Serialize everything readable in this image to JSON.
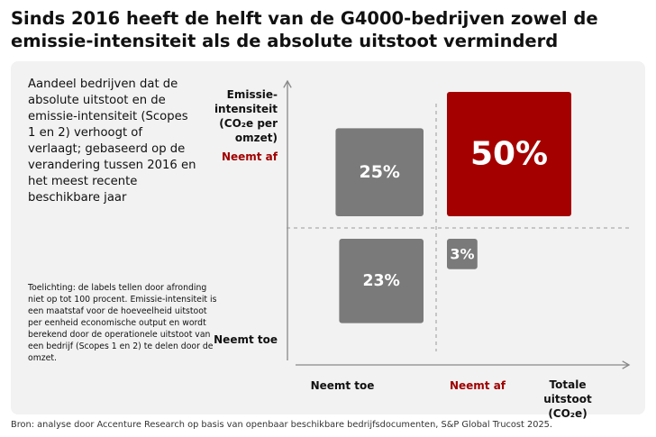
{
  "chart_data": {
    "type": "matrix",
    "title": "Sinds 2016 heeft de helft van de G4000-bedrijven zowel de emissie-intensiteit als de absolute uitstoot verminderd",
    "description": "Aandeel bedrijven dat de absolute uitstoot en de emissie-intensiteit (Scopes 1 en 2) verhoogt of verlaagt; gebaseerd op de verandering tussen 2016 en het meest recente beschikbare jaar",
    "note": "Toelichting: de labels tellen door afronding niet op tot 100 procent. Emissie-intensiteit is een maatstaf voor de hoeveelheid uitstoot per eenheid economische output en wordt berekend door de operationele uitstoot van een bedrijf (Scopes 1 en 2) te delen door de omzet.",
    "source": "Bron: analyse door Accenture Research op basis van openbaar beschikbare bedrijfsdocumenten, S&P Global Trucost 2025.",
    "y_label": "Emissie-intensiteit (CO₂e per omzet)",
    "x_label": "Totale uitstoot (CO₂e)",
    "y_categories": [
      "Neemt af",
      "Neemt toe"
    ],
    "x_categories": [
      "Neemt toe",
      "Neemt af"
    ],
    "values": [
      25,
      50,
      23,
      3
    ],
    "value_labels": [
      "25%",
      "50%",
      "23%",
      "3%"
    ],
    "colors": [
      "#7a7a7a",
      "#a50000",
      "#7a7a7a",
      "#7a7a7a"
    ]
  }
}
